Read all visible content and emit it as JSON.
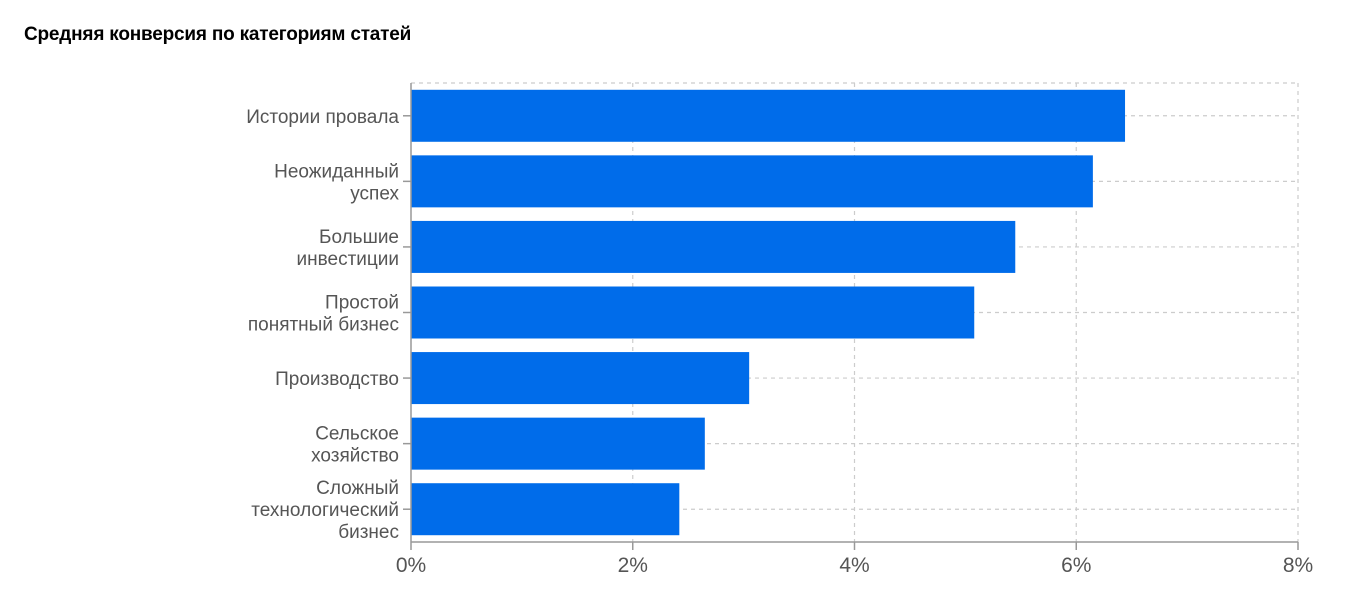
{
  "chart_data": {
    "type": "bar",
    "orientation": "horizontal",
    "title": "Средняя конверсия по категориям статей",
    "categories": [
      [
        "Истории провала"
      ],
      [
        "Неожиданный",
        "успех"
      ],
      [
        "Большие",
        "инвестиции"
      ],
      [
        "Простой",
        "понятный бизнес"
      ],
      [
        "Производство"
      ],
      [
        "Сельское",
        "хозяйство"
      ],
      [
        "Сложный",
        "технологический",
        "бизнес"
      ]
    ],
    "values": [
      6.44,
      6.15,
      5.45,
      5.08,
      3.05,
      2.65,
      2.42
    ],
    "xlim": [
      0,
      8
    ],
    "xticks": [
      0,
      2,
      4,
      6,
      8
    ],
    "tick_labels": [
      "0%",
      "2%",
      "4%",
      "6%",
      "8%"
    ],
    "xlabel": "",
    "ylabel": "",
    "grid": true,
    "colors": {
      "bar": "#006cea",
      "grid": "#cccccc",
      "axis": "#999999",
      "text": "#555555"
    }
  }
}
